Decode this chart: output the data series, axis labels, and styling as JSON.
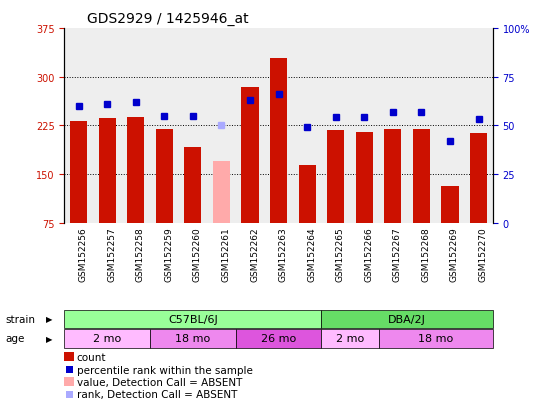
{
  "title": "GDS2929 / 1425946_at",
  "samples": [
    "GSM152256",
    "GSM152257",
    "GSM152258",
    "GSM152259",
    "GSM152260",
    "GSM152261",
    "GSM152262",
    "GSM152263",
    "GSM152264",
    "GSM152265",
    "GSM152266",
    "GSM152267",
    "GSM152268",
    "GSM152269",
    "GSM152270"
  ],
  "counts": [
    232,
    236,
    237,
    220,
    192,
    170,
    284,
    328,
    163,
    218,
    215,
    220,
    220,
    132,
    213
  ],
  "absent": [
    false,
    false,
    false,
    false,
    false,
    true,
    false,
    false,
    false,
    false,
    false,
    false,
    false,
    false,
    false
  ],
  "percentile_ranks": [
    60,
    61,
    62,
    55,
    55,
    50,
    63,
    66,
    49,
    54,
    54,
    57,
    57,
    42,
    53
  ],
  "ylim_left": [
    75,
    375
  ],
  "ylim_right": [
    0,
    100
  ],
  "yticks_left": [
    75,
    150,
    225,
    300,
    375
  ],
  "yticks_right": [
    0,
    25,
    50,
    75,
    100
  ],
  "bar_color_normal": "#cc1100",
  "bar_color_absent": "#ffaaaa",
  "rank_color_normal": "#0000cc",
  "rank_color_absent": "#aaaaff",
  "strain_groups": [
    {
      "label": "C57BL/6J",
      "start": 0,
      "end": 9,
      "color": "#99ff99"
    },
    {
      "label": "DBA/2J",
      "start": 9,
      "end": 15,
      "color": "#66dd66"
    }
  ],
  "age_groups": [
    {
      "label": "2 mo",
      "start": 0,
      "end": 3,
      "color": "#ffbbff"
    },
    {
      "label": "18 mo",
      "start": 3,
      "end": 6,
      "color": "#ee88ee"
    },
    {
      "label": "26 mo",
      "start": 6,
      "end": 9,
      "color": "#dd55dd"
    },
    {
      "label": "2 mo",
      "start": 9,
      "end": 11,
      "color": "#ffbbff"
    },
    {
      "label": "18 mo",
      "start": 11,
      "end": 15,
      "color": "#ee88ee"
    }
  ],
  "grid_color": "#000000",
  "background_color": "#ffffff",
  "bar_width": 0.6,
  "title_fontsize": 10,
  "tick_fontsize": 7,
  "legend_fontsize": 7.5
}
